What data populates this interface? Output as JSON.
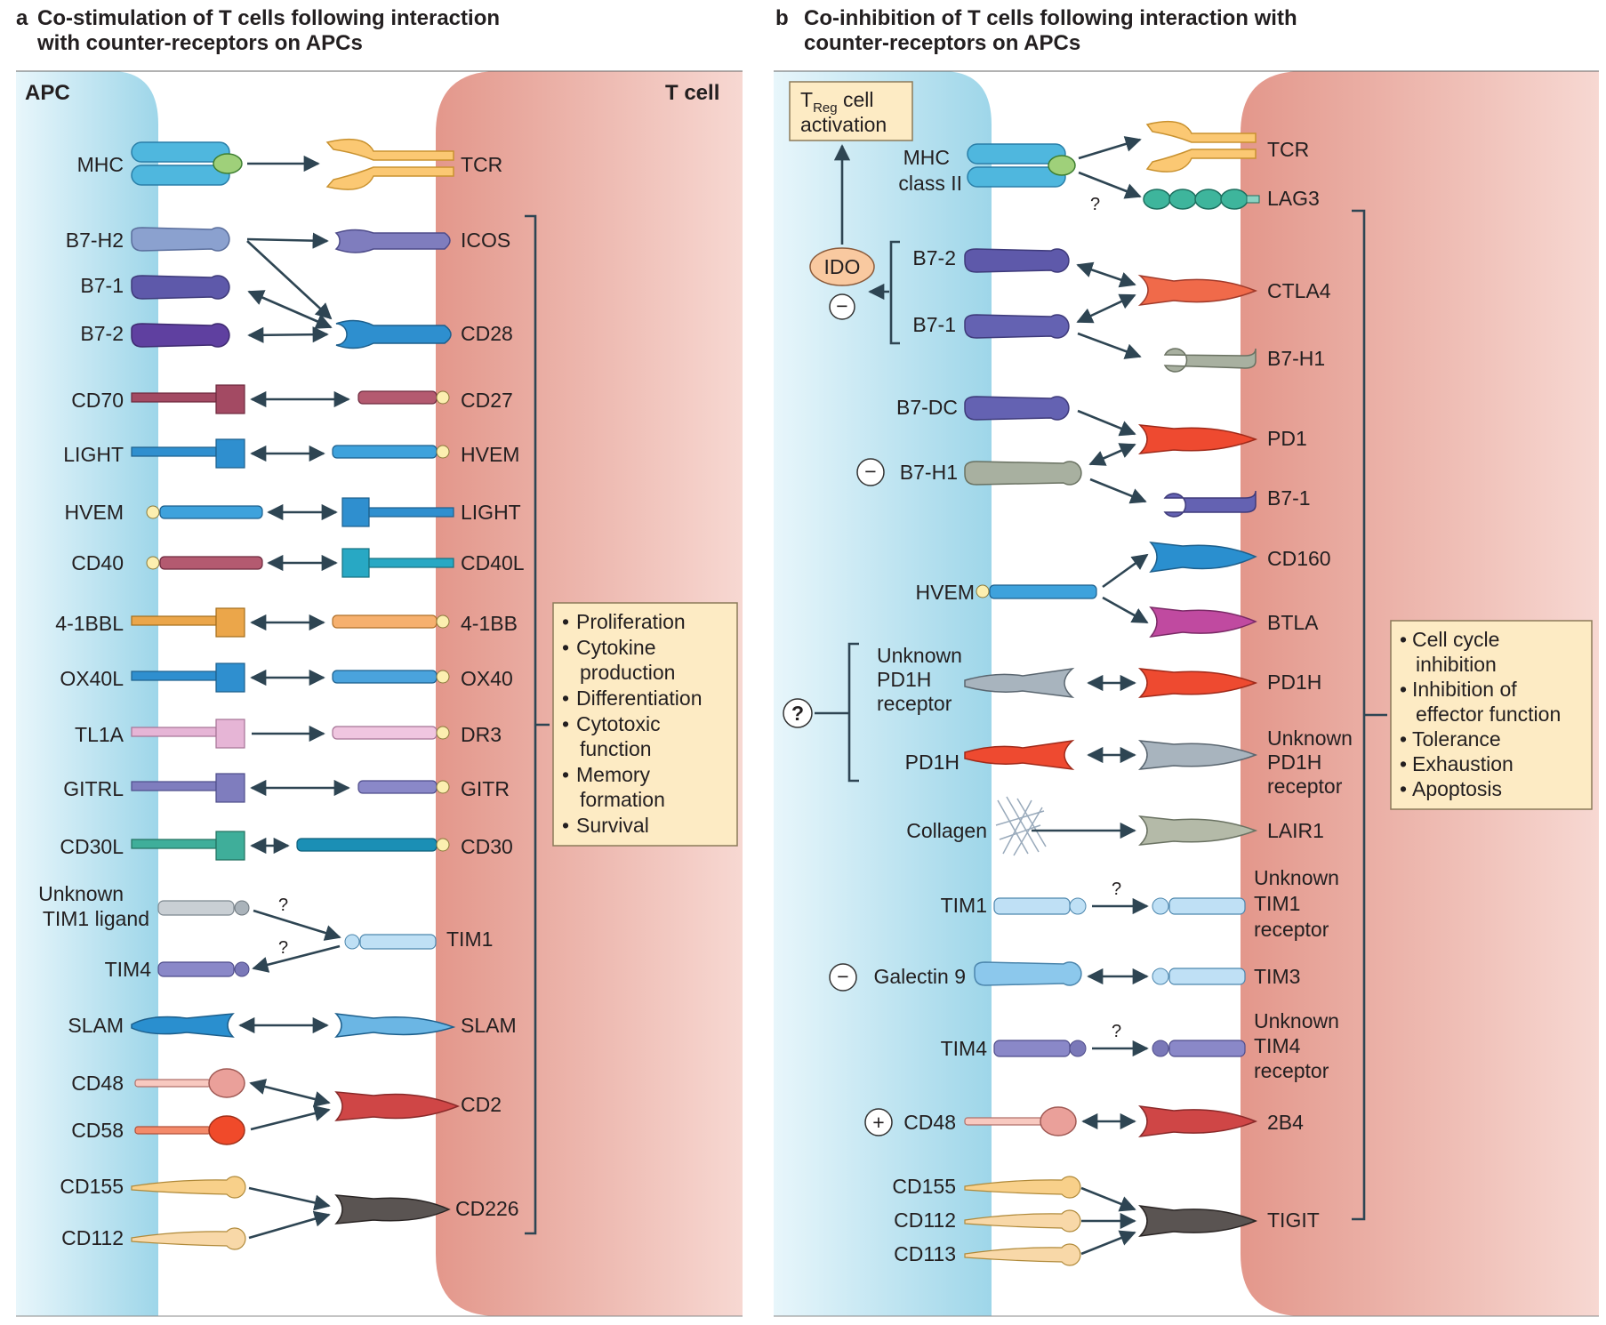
{
  "colors": {
    "apc_light": "#e6f6fb",
    "apc_dark": "#9fd8ea",
    "tcell_dark": "#e59b8f",
    "tcell_light": "#f7d6d0",
    "box_fill": "#fdebc4",
    "box_stroke": "#8c7b5a",
    "arrow": "#2e4553"
  },
  "panel_a": {
    "letter": "a",
    "title_line1": "Co-stimulation of T cells following interaction",
    "title_line2": "with counter-receptors on APCs",
    "apc_label": "APC",
    "tcell_label": "T cell",
    "apc_ligands": [
      "MHC",
      "B7-H2",
      "B7-1",
      "B7-2",
      "CD70",
      "LIGHT",
      "HVEM",
      "CD40",
      "4-1BBL",
      "OX40L",
      "TL1A",
      "GITRL",
      "CD30L",
      "CD48",
      "CD58",
      "CD155",
      "CD112"
    ],
    "unknown_ligand_line1": "Unknown",
    "unknown_ligand_line2": "TIM1 ligand",
    "tim4_label": "TIM4",
    "slam_apc": "SLAM",
    "tcell_receptors": [
      "TCR",
      "ICOS",
      "CD28",
      "CD27",
      "HVEM",
      "LIGHT",
      "CD40L",
      "4-1BB",
      "OX40",
      "DR3",
      "GITR",
      "CD30",
      "TIM1",
      "SLAM",
      "CD2",
      "CD226"
    ],
    "question": "?",
    "outcomes": [
      "Proliferation",
      "Cytokine",
      "production",
      "Differentiation",
      "Cytotoxic",
      "function",
      "Memory",
      "formation",
      "Survival"
    ]
  },
  "panel_b": {
    "letter": "b",
    "title_line1": "Co-inhibition of T cells following interaction with",
    "title_line2": "counter-receptors on APCs",
    "treg_main": "T",
    "treg_sub": "Reg",
    "treg_rest": " cell",
    "treg_line2": "activation",
    "ido": "IDO",
    "minus": "−",
    "plus": "+",
    "question": "?",
    "apc_ligands": [
      "MHC",
      "class II",
      "B7-2",
      "B7-1",
      "B7-DC",
      "B7-H1",
      "HVEM",
      "PD1H",
      "Collagen",
      "TIM1",
      "Galectin 9",
      "TIM4",
      "CD48",
      "CD155",
      "CD112",
      "CD113"
    ],
    "unknown_pd1h_receptor": [
      "Unknown",
      "PD1H",
      "receptor"
    ],
    "tcell_receptors": [
      "TCR",
      "LAG3",
      "CTLA4",
      "B7-H1",
      "PD1",
      "B7-1",
      "CD160",
      "BTLA",
      "PD1H",
      "LAIR1",
      "TIM3",
      "2B4",
      "TIGIT"
    ],
    "unknown_pd1h_receptor_t": [
      "Unknown",
      "PD1H",
      "receptor"
    ],
    "unknown_tim1_receptor": [
      "Unknown",
      "TIM1",
      "receptor"
    ],
    "unknown_tim4_receptor": [
      "Unknown",
      "TIM4",
      "receptor"
    ],
    "outcomes": [
      "Cell cycle",
      "inhibition",
      "Inhibition of",
      "effector function",
      "Tolerance",
      "Exhaustion",
      "Apoptosis"
    ]
  }
}
